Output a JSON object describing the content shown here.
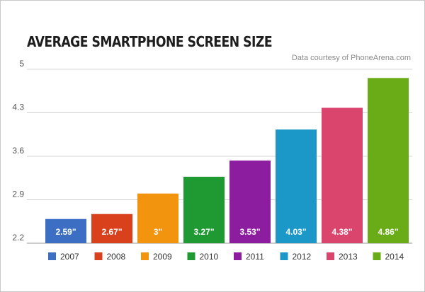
{
  "header": {
    "title": "AVERAGE SMARTPHONE SCREEN SIZE",
    "credit": "Data courtesy of PhoneArena.com"
  },
  "chart_data": {
    "type": "bar",
    "title": "AVERAGE SMARTPHONE SCREEN SIZE",
    "xlabel": "",
    "ylabel": "",
    "ylim": [
      2.2,
      5
    ],
    "yticks": [
      "2.2",
      "2.9",
      "3.6",
      "4.3",
      "5"
    ],
    "grid": true,
    "legend": "bottom",
    "categories": [
      "2007",
      "2008",
      "2009",
      "2010",
      "2011",
      "2012",
      "2013",
      "2014"
    ],
    "values": [
      2.59,
      2.67,
      3,
      3.27,
      3.53,
      4.03,
      4.38,
      4.86
    ],
    "data_labels": [
      "2.59\"",
      "2.67\"",
      "3\"",
      "3.27\"",
      "3.53\"",
      "4.03\"",
      "4.38\"",
      "4.86\""
    ],
    "colors": [
      "#3c6fc4",
      "#d9411c",
      "#f2940e",
      "#1f9a33",
      "#8b1d9e",
      "#1b97c8",
      "#d9456d",
      "#6aac17"
    ]
  }
}
